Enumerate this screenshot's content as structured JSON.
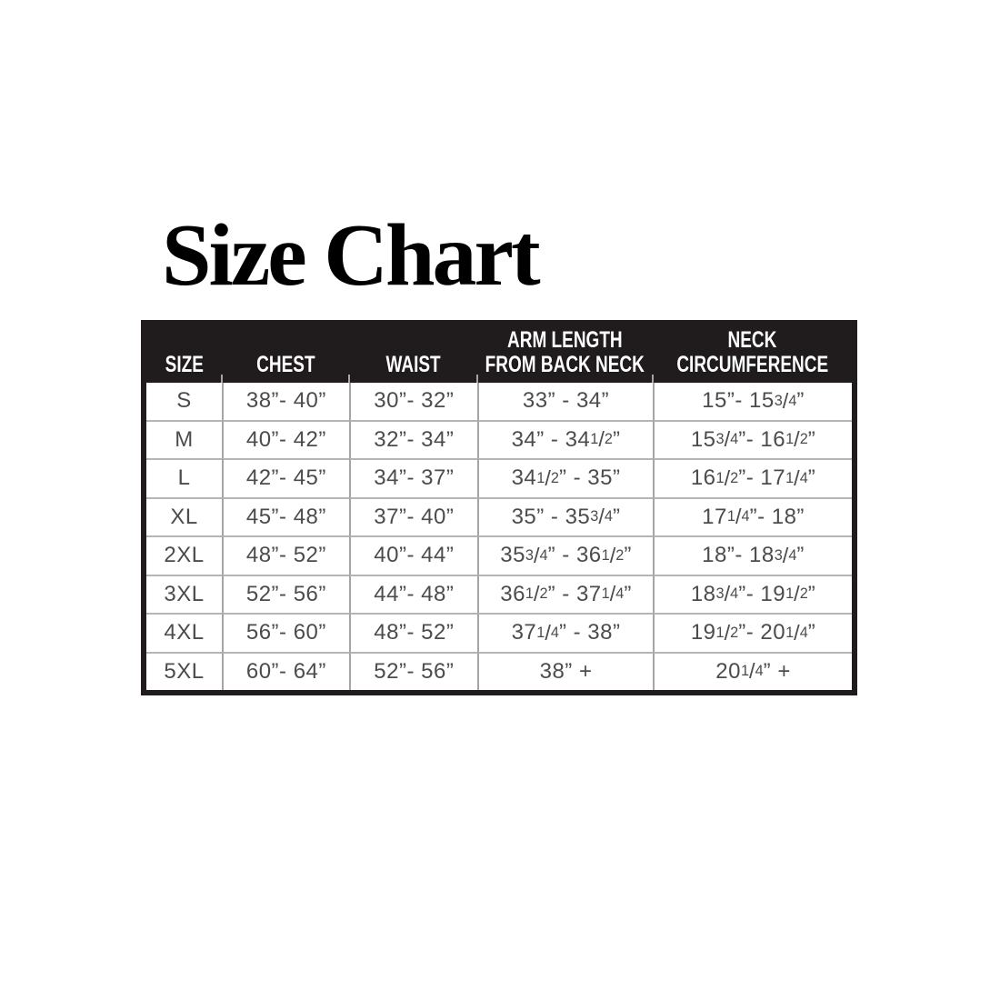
{
  "page": {
    "title": "Size Chart"
  },
  "chart_data": {
    "type": "table",
    "title": "Size Chart",
    "columns": [
      "SIZE",
      "CHEST",
      "WAIST",
      "ARM LENGTH FROM BACK NECK",
      "NECK CIRCUMFERENCE"
    ],
    "header_lines": [
      [
        "SIZE"
      ],
      [
        "CHEST"
      ],
      [
        "WAIST"
      ],
      [
        "ARM LENGTH",
        "FROM BACK NECK"
      ],
      [
        "NECK",
        "CIRCUMFERENCE"
      ]
    ],
    "rows": [
      [
        "S",
        "38”- 40”",
        "30”- 32”",
        "33” - 34”",
        "15”- 15 3/4”"
      ],
      [
        "M",
        "40”- 42”",
        "32”- 34”",
        "34” - 34 1/2”",
        "15 3/4”- 16 1/2”"
      ],
      [
        "L",
        "42”- 45”",
        "34”- 37”",
        "34 1/2” - 35”",
        "16 1/2”- 17 1/4”"
      ],
      [
        "XL",
        "45”- 48”",
        "37”- 40”",
        "35” - 35 3/4”",
        "17 1/4”- 18”"
      ],
      [
        "2XL",
        "48”- 52”",
        "40”- 44”",
        "35 3/4” - 36 1/2”",
        "18”- 18 3/4”"
      ],
      [
        "3XL",
        "52”- 56”",
        "44”- 48”",
        "36 1/2” - 37 1/4”",
        "18 3/4”- 19 1/2”"
      ],
      [
        "4XL",
        "56”- 60”",
        "48”- 52”",
        "37 1/4” - 38”",
        "19 1/2”- 20 1/4”"
      ],
      [
        "5XL",
        "60”- 64”",
        "52”- 56”",
        "38” +",
        "20 1/4” +"
      ]
    ]
  },
  "colors": {
    "header_bg": "#201c1d",
    "header_text": "#ffffff",
    "body_text": "#4c4c4e",
    "grid_line": "#a5a5a5",
    "outer_border": "#201c1d",
    "page_bg": "#ffffff",
    "title_text": "#000000"
  }
}
